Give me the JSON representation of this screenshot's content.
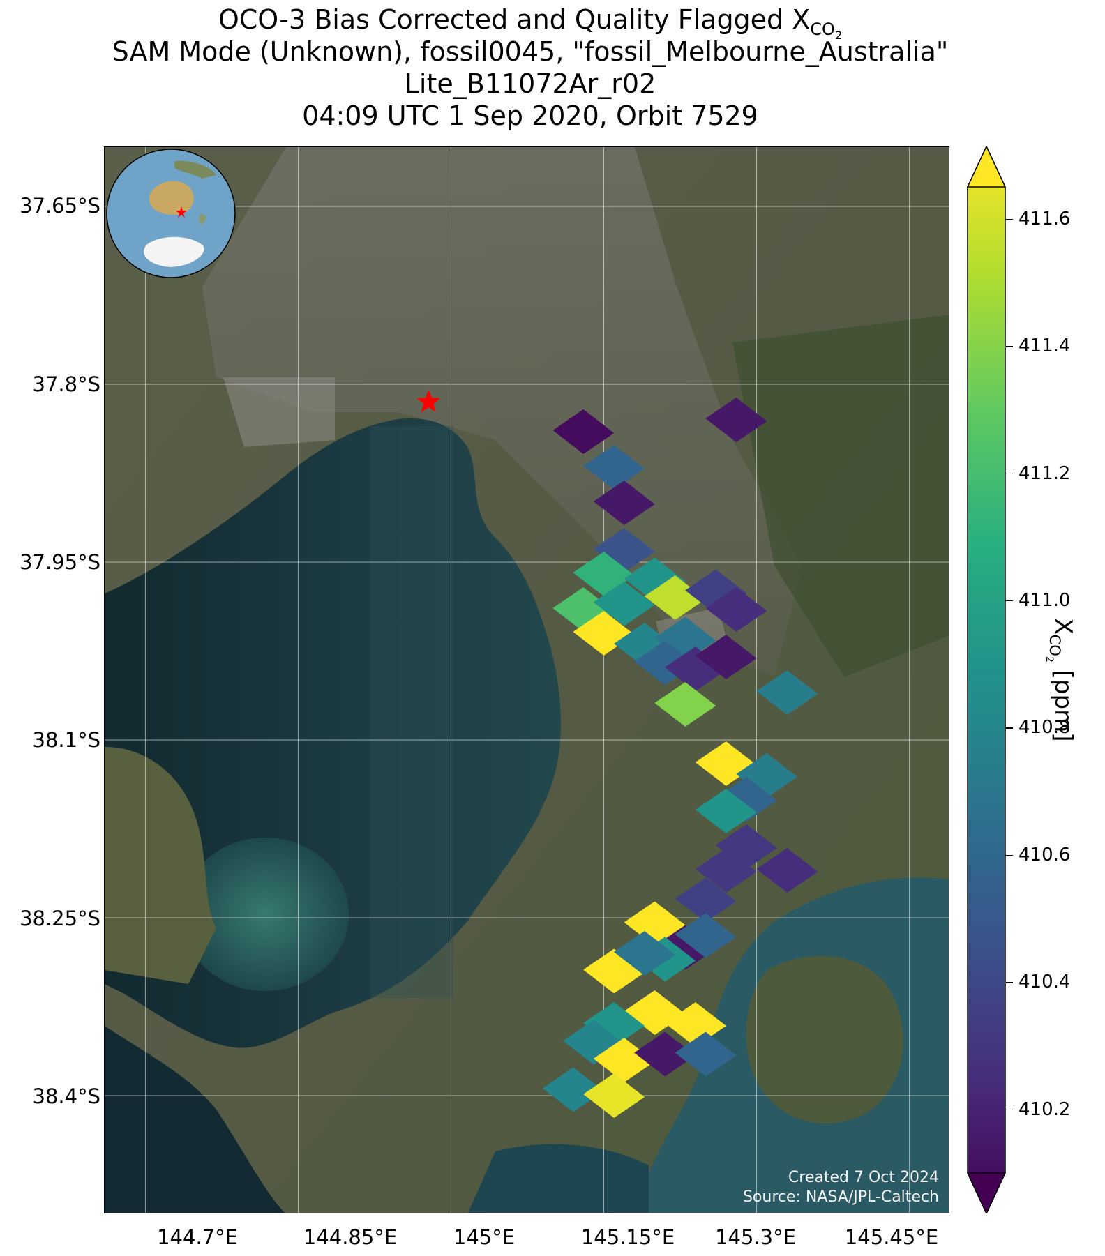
{
  "title": {
    "line1_prefix": "OCO-3 Bias Corrected and Quality Flagged X",
    "line1_sub": "CO",
    "line1_sub2": "2",
    "line2": "SAM Mode (Unknown), fossil0045, \"fossil_Melbourne_Australia\"",
    "line3": "Lite_B11072Ar_r02",
    "line4": "04:09 UTC 1 Sep 2020, Orbit 7529"
  },
  "axes": {
    "y_labels": [
      "37.65°S",
      "37.8°S",
      "37.95°S",
      "38.1°S",
      "38.25°S",
      "38.4°S"
    ],
    "x_labels": [
      "144.7°E",
      "144.85°E",
      "145°E",
      "145.15°E",
      "145.3°E",
      "145.45°E"
    ]
  },
  "colorbar": {
    "ticks": [
      "411.6",
      "411.4",
      "411.2",
      "411.0",
      "410.8",
      "410.6",
      "410.4",
      "410.2"
    ],
    "label_prefix": "X",
    "label_sub": "CO",
    "label_sub2": "2",
    "label_suffix": " [ppm]",
    "min": 410.1,
    "max": 411.65
  },
  "credit": {
    "line1": "Created 7 Oct 2024",
    "line2": "Source: NASA/JPL-Caltech"
  },
  "map_extent": {
    "lon_min": 144.66,
    "lon_max": 145.49,
    "lat_min": -38.5,
    "lat_max": -37.6
  },
  "target": {
    "name": "fossil_Melbourne_Australia",
    "lon": 144.978,
    "lat": -37.815
  },
  "chart_data": {
    "type": "scatter",
    "x_label": "longitude",
    "y_label": "latitude",
    "value_unit": "ppm",
    "soundings": [
      {
        "lon": 145.13,
        "lat": -37.84,
        "xco2": 410.15
      },
      {
        "lon": 145.16,
        "lat": -37.87,
        "xco2": 410.6
      },
      {
        "lon": 145.17,
        "lat": -37.9,
        "xco2": 410.2
      },
      {
        "lon": 145.28,
        "lat": -37.83,
        "xco2": 410.2
      },
      {
        "lon": 145.17,
        "lat": -37.94,
        "xco2": 410.5
      },
      {
        "lon": 145.15,
        "lat": -37.96,
        "xco2": 411.1
      },
      {
        "lon": 145.2,
        "lat": -37.965,
        "xco2": 410.9
      },
      {
        "lon": 145.13,
        "lat": -37.99,
        "xco2": 411.2
      },
      {
        "lon": 145.17,
        "lat": -37.985,
        "xco2": 410.9
      },
      {
        "lon": 145.22,
        "lat": -37.98,
        "xco2": 411.5
      },
      {
        "lon": 145.26,
        "lat": -37.975,
        "xco2": 410.4
      },
      {
        "lon": 145.28,
        "lat": -37.99,
        "xco2": 410.3
      },
      {
        "lon": 145.15,
        "lat": -38.01,
        "xco2": 411.65
      },
      {
        "lon": 145.19,
        "lat": -38.02,
        "xco2": 410.8
      },
      {
        "lon": 145.23,
        "lat": -38.015,
        "xco2": 410.7
      },
      {
        "lon": 145.21,
        "lat": -38.035,
        "xco2": 410.6
      },
      {
        "lon": 145.24,
        "lat": -38.04,
        "xco2": 410.3
      },
      {
        "lon": 145.27,
        "lat": -38.03,
        "xco2": 410.2
      },
      {
        "lon": 145.23,
        "lat": -38.07,
        "xco2": 411.35
      },
      {
        "lon": 145.33,
        "lat": -38.06,
        "xco2": 410.75
      },
      {
        "lon": 145.27,
        "lat": -38.12,
        "xco2": 411.65
      },
      {
        "lon": 145.31,
        "lat": -38.13,
        "xco2": 410.75
      },
      {
        "lon": 145.29,
        "lat": -38.15,
        "xco2": 410.6
      },
      {
        "lon": 145.27,
        "lat": -38.16,
        "xco2": 410.9
      },
      {
        "lon": 145.29,
        "lat": -38.19,
        "xco2": 410.35
      },
      {
        "lon": 145.27,
        "lat": -38.21,
        "xco2": 410.35
      },
      {
        "lon": 145.33,
        "lat": -38.21,
        "xco2": 410.3
      },
      {
        "lon": 145.25,
        "lat": -38.235,
        "xco2": 410.4
      },
      {
        "lon": 145.2,
        "lat": -38.255,
        "xco2": 411.65
      },
      {
        "lon": 145.23,
        "lat": -38.275,
        "xco2": 410.2
      },
      {
        "lon": 145.25,
        "lat": -38.265,
        "xco2": 410.6
      },
      {
        "lon": 145.21,
        "lat": -38.285,
        "xco2": 410.9
      },
      {
        "lon": 145.16,
        "lat": -38.295,
        "xco2": 411.65
      },
      {
        "lon": 145.19,
        "lat": -38.28,
        "xco2": 410.7
      },
      {
        "lon": 145.2,
        "lat": -38.33,
        "xco2": 411.65
      },
      {
        "lon": 145.24,
        "lat": -38.34,
        "xco2": 411.65
      },
      {
        "lon": 145.16,
        "lat": -38.34,
        "xco2": 410.9
      },
      {
        "lon": 145.14,
        "lat": -38.355,
        "xco2": 410.8
      },
      {
        "lon": 145.17,
        "lat": -38.37,
        "xco2": 411.65
      },
      {
        "lon": 145.21,
        "lat": -38.365,
        "xco2": 410.2
      },
      {
        "lon": 145.25,
        "lat": -38.365,
        "xco2": 410.6
      },
      {
        "lon": 145.12,
        "lat": -38.395,
        "xco2": 410.8
      },
      {
        "lon": 145.16,
        "lat": -38.4,
        "xco2": 411.6
      }
    ]
  }
}
